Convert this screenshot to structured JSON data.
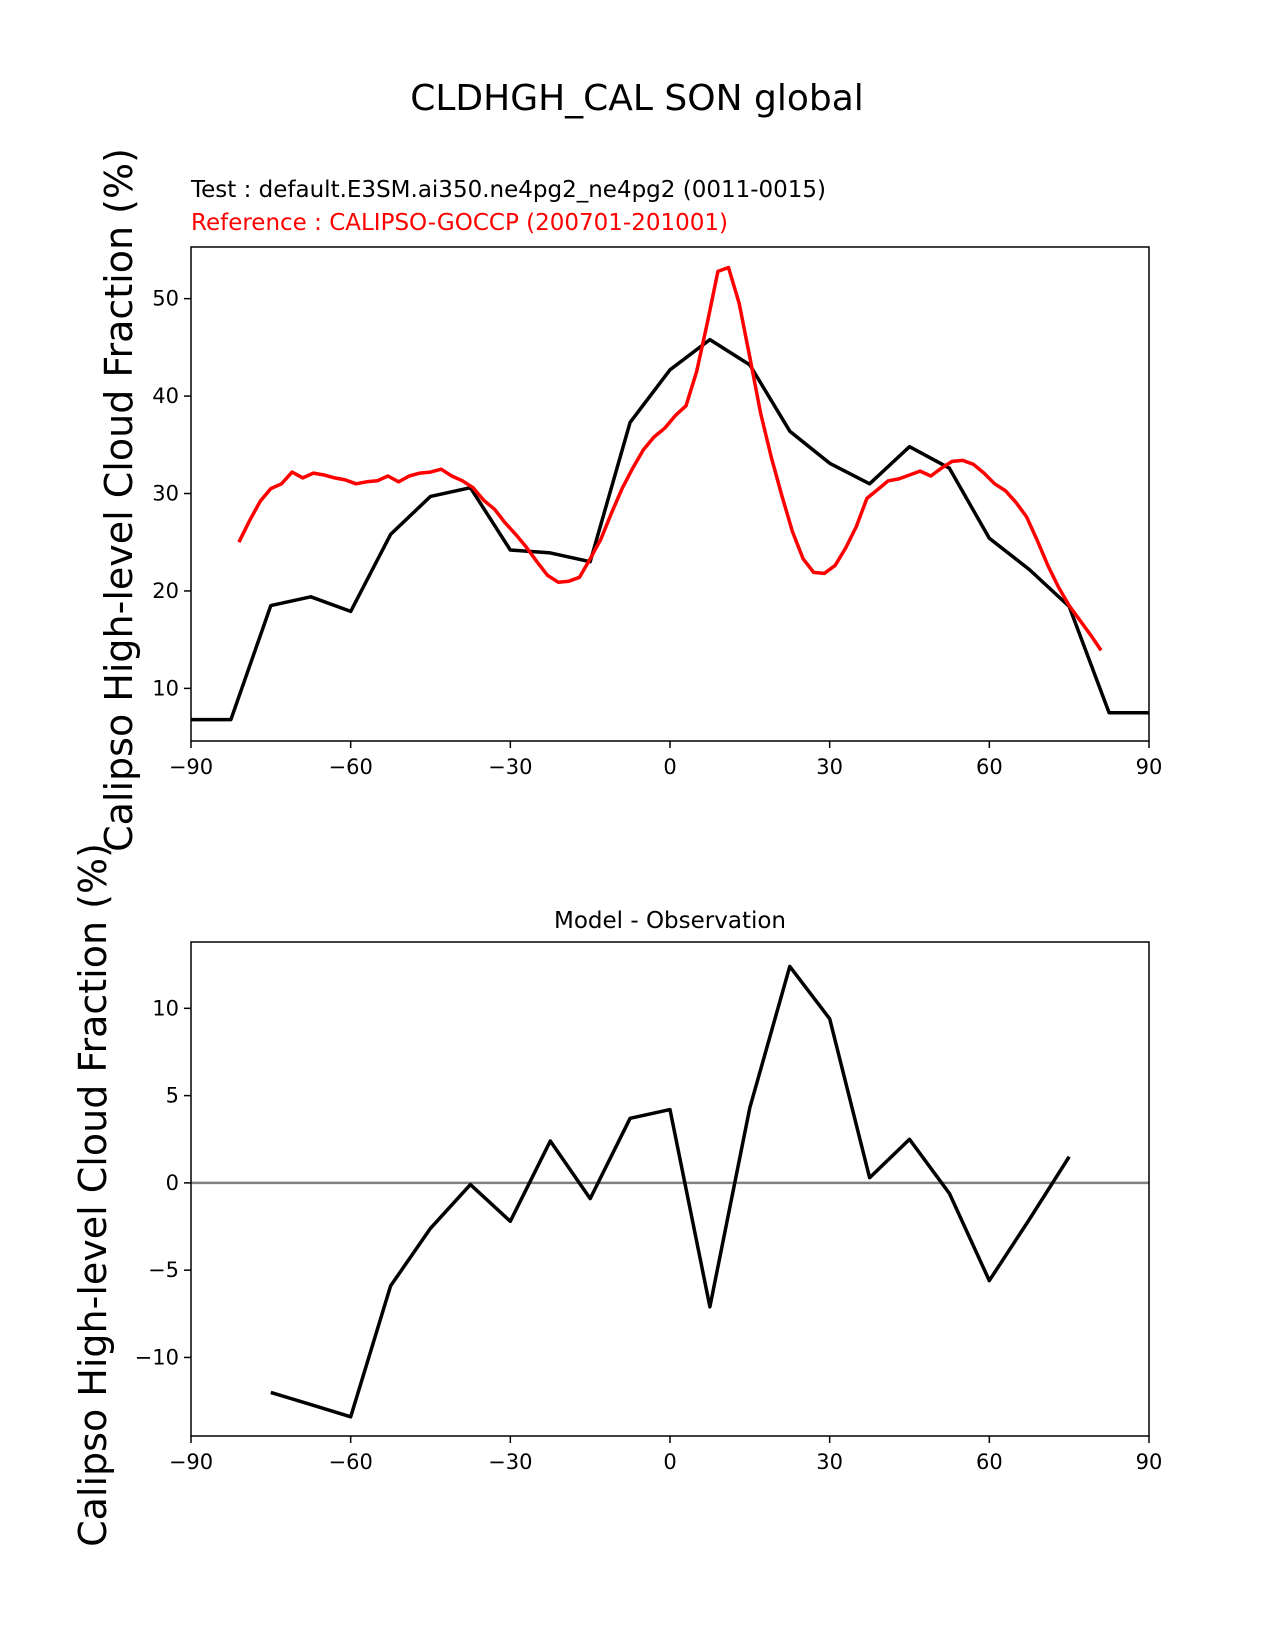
{
  "figure": {
    "suptitle": "CLDHGH_CAL SON global",
    "ylabel": "Calipso High-level Cloud Fraction (%)"
  },
  "colors": {
    "test": "#000000",
    "reference": "#ff0000",
    "zero_line": "#808080"
  },
  "chart_data": [
    {
      "type": "line",
      "test_label": "Test : default.E3SM.ai350.ne4pg2_ne4pg2 (0011-0015)",
      "reference_label": "Reference : CALIPSO-GOCCP (200701-201001)",
      "xlim": [
        -90,
        90
      ],
      "ylim": [
        4.6,
        55.3
      ],
      "xticks": [
        -90,
        -60,
        -30,
        0,
        30,
        60,
        90
      ],
      "yticks": [
        10,
        20,
        30,
        40,
        50
      ],
      "series": [
        {
          "role": "test",
          "color": "#000000",
          "x": [
            -90,
            -82.5,
            -75,
            -67.5,
            -60,
            -52.5,
            -45,
            -37.5,
            -30,
            -22.5,
            -15,
            -7.5,
            0,
            7.5,
            15,
            22.5,
            30,
            37.5,
            45,
            52.5,
            60,
            67.5,
            75,
            82.5,
            90
          ],
          "y": [
            6.8,
            6.8,
            18.5,
            19.4,
            17.9,
            25.8,
            29.7,
            30.6,
            24.2,
            23.9,
            23.0,
            37.3,
            42.7,
            45.8,
            43.2,
            36.4,
            33.1,
            31.0,
            34.8,
            32.6,
            25.4,
            22.2,
            18.4,
            7.5,
            7.5
          ]
        },
        {
          "role": "reference",
          "color": "#ff0000",
          "x": [
            -81,
            -79,
            -77,
            -75,
            -73,
            -71,
            -69,
            -67,
            -65,
            -63,
            -61,
            -59,
            -57,
            -55,
            -53,
            -51,
            -49,
            -47,
            -45,
            -43,
            -41,
            -39,
            -37,
            -35,
            -33,
            -31,
            -29,
            -27,
            -25,
            -23,
            -21,
            -19,
            -17,
            -15,
            -13,
            -11,
            -9,
            -7,
            -5,
            -3,
            -1,
            1,
            3,
            5,
            7,
            9,
            11,
            13,
            15,
            17,
            19,
            21,
            23,
            25,
            27,
            29,
            31,
            33,
            35,
            37,
            39,
            41,
            43,
            45,
            47,
            49,
            51,
            53,
            55,
            57,
            59,
            61,
            63,
            65,
            67,
            69,
            71,
            73,
            75,
            77,
            79,
            81
          ],
          "y": [
            25.0,
            27.2,
            29.2,
            30.5,
            31.0,
            32.2,
            31.6,
            32.1,
            31.9,
            31.6,
            31.4,
            31.0,
            31.2,
            31.3,
            31.8,
            31.2,
            31.8,
            32.1,
            32.2,
            32.5,
            31.8,
            31.3,
            30.6,
            29.3,
            28.4,
            27.0,
            25.8,
            24.5,
            23.0,
            21.6,
            20.9,
            21.0,
            21.4,
            23.3,
            25.3,
            28.0,
            30.5,
            32.6,
            34.5,
            35.8,
            36.7,
            38.0,
            39.0,
            42.5,
            47.5,
            52.8,
            53.2,
            49.5,
            44.0,
            38.3,
            33.8,
            29.8,
            26.1,
            23.3,
            21.9,
            21.8,
            22.6,
            24.4,
            26.6,
            29.5,
            30.4,
            31.3,
            31.5,
            31.9,
            32.3,
            31.8,
            32.6,
            33.3,
            33.4,
            33.0,
            32.1,
            31.0,
            30.3,
            29.1,
            27.6,
            25.2,
            22.6,
            20.4,
            18.5,
            17.0,
            15.5,
            13.9
          ]
        }
      ]
    },
    {
      "type": "line",
      "title": "Model - Observation",
      "xlim": [
        -90,
        90
      ],
      "ylim": [
        -14.5,
        13.8
      ],
      "xticks": [
        -90,
        -60,
        -30,
        0,
        30,
        60,
        90
      ],
      "yticks": [
        -10,
        -5,
        0,
        5,
        10
      ],
      "zero_line": true,
      "series": [
        {
          "role": "difference",
          "color": "#000000",
          "x": [
            -75,
            -67.5,
            -60,
            -52.5,
            -45,
            -37.5,
            -30,
            -22.5,
            -15,
            -7.5,
            0,
            7.5,
            15,
            22.5,
            30,
            37.5,
            45,
            52.5,
            60,
            67.5,
            75
          ],
          "y": [
            -12.0,
            -12.7,
            -13.4,
            -5.9,
            -2.6,
            -0.1,
            -2.2,
            2.4,
            -0.9,
            3.7,
            4.2,
            -7.1,
            4.3,
            12.4,
            9.4,
            0.3,
            2.5,
            -0.6,
            -5.6,
            -2.1,
            1.5
          ]
        }
      ]
    }
  ]
}
